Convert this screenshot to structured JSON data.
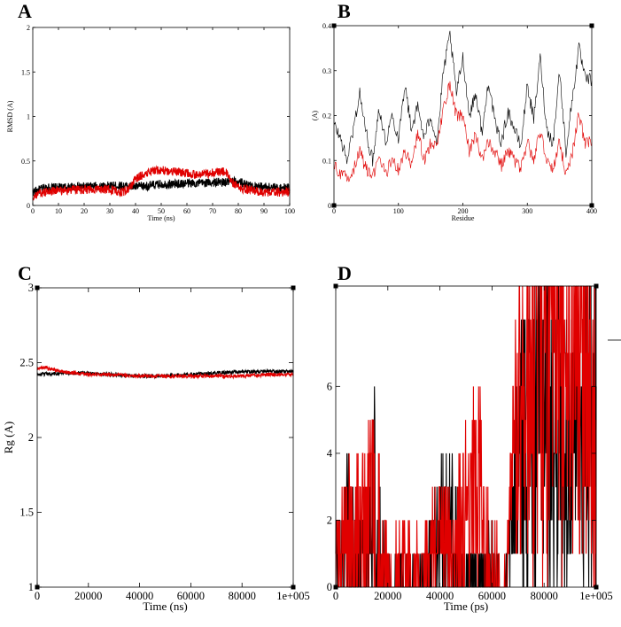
{
  "colors": {
    "series1": "#000000",
    "series2": "#e00000"
  },
  "chart_data": [
    {
      "panel": "A",
      "type": "line",
      "title": "",
      "xlabel": "Time (ns)",
      "ylabel": "RMSD (A)",
      "xlim": [
        0,
        100
      ],
      "ylim": [
        0,
        2
      ],
      "x_ticks": [
        "0",
        "10",
        "20",
        "30",
        "40",
        "50",
        "60",
        "70",
        "80",
        "90",
        "100"
      ],
      "y_ticks": [
        "0",
        "0.5",
        "1",
        "1.5",
        "2"
      ],
      "series": [
        {
          "name": "black",
          "color": "#000000",
          "x": [
            0,
            5,
            10,
            20,
            30,
            35,
            40,
            45,
            50,
            55,
            60,
            65,
            70,
            75,
            80,
            85,
            90,
            95,
            100
          ],
          "values": [
            0.15,
            0.2,
            0.2,
            0.21,
            0.22,
            0.22,
            0.21,
            0.22,
            0.24,
            0.24,
            0.25,
            0.25,
            0.26,
            0.26,
            0.27,
            0.22,
            0.21,
            0.2,
            0.2
          ]
        },
        {
          "name": "red",
          "color": "#e00000",
          "x": [
            0,
            5,
            10,
            20,
            30,
            35,
            38,
            40,
            45,
            50,
            55,
            60,
            65,
            70,
            75,
            77,
            80,
            85,
            90,
            95,
            100
          ],
          "values": [
            0.1,
            0.15,
            0.17,
            0.18,
            0.18,
            0.15,
            0.2,
            0.3,
            0.38,
            0.4,
            0.38,
            0.36,
            0.34,
            0.37,
            0.38,
            0.28,
            0.2,
            0.17,
            0.15,
            0.15,
            0.15
          ]
        }
      ]
    },
    {
      "panel": "B",
      "type": "line",
      "title": "",
      "xlabel": "Residue",
      "ylabel": "(A)",
      "xlim": [
        0,
        400
      ],
      "ylim": [
        0,
        0.4
      ],
      "x_ticks": [
        "0",
        "100",
        "200",
        "300",
        "400"
      ],
      "y_ticks": [
        "0",
        "0.1",
        "0.2",
        "0.3",
        "0.4"
      ],
      "series": [
        {
          "name": "black",
          "color": "#000000",
          "x": [
            0,
            10,
            20,
            30,
            40,
            50,
            60,
            70,
            80,
            90,
            100,
            110,
            120,
            130,
            140,
            150,
            160,
            170,
            180,
            190,
            200,
            210,
            220,
            230,
            240,
            250,
            260,
            270,
            280,
            290,
            300,
            310,
            320,
            330,
            340,
            350,
            360,
            370,
            380,
            390
          ],
          "values": [
            0.18,
            0.15,
            0.1,
            0.17,
            0.25,
            0.16,
            0.1,
            0.22,
            0.14,
            0.2,
            0.15,
            0.27,
            0.17,
            0.22,
            0.15,
            0.2,
            0.14,
            0.3,
            0.38,
            0.25,
            0.33,
            0.2,
            0.25,
            0.16,
            0.28,
            0.18,
            0.14,
            0.21,
            0.17,
            0.13,
            0.27,
            0.19,
            0.33,
            0.17,
            0.14,
            0.3,
            0.12,
            0.24,
            0.35,
            0.28
          ]
        },
        {
          "name": "red",
          "color": "#e00000",
          "x": [
            0,
            10,
            20,
            30,
            40,
            50,
            60,
            70,
            80,
            90,
            100,
            110,
            120,
            130,
            140,
            150,
            160,
            170,
            180,
            190,
            200,
            210,
            220,
            230,
            240,
            250,
            260,
            270,
            280,
            290,
            300,
            310,
            320,
            330,
            340,
            350,
            360,
            370,
            380,
            390
          ],
          "values": [
            0.09,
            0.07,
            0.06,
            0.08,
            0.12,
            0.08,
            0.06,
            0.11,
            0.07,
            0.1,
            0.08,
            0.12,
            0.09,
            0.16,
            0.1,
            0.14,
            0.13,
            0.22,
            0.27,
            0.2,
            0.2,
            0.12,
            0.16,
            0.1,
            0.14,
            0.12,
            0.09,
            0.12,
            0.1,
            0.08,
            0.14,
            0.1,
            0.17,
            0.1,
            0.08,
            0.14,
            0.07,
            0.12,
            0.2,
            0.14
          ]
        }
      ]
    },
    {
      "panel": "C",
      "type": "line",
      "title": "",
      "xlabel": "Time (ns)",
      "ylabel": "Rg (A)",
      "xlim": [
        0,
        100000
      ],
      "ylim": [
        1,
        3
      ],
      "x_ticks": [
        "0",
        "20000",
        "40000",
        "60000",
        "80000",
        "1e+005"
      ],
      "y_ticks": [
        "1",
        "1.5",
        "2",
        "2.5",
        "3"
      ],
      "series": [
        {
          "name": "black",
          "color": "#000000",
          "x": [
            0,
            10000,
            20000,
            30000,
            40000,
            50000,
            60000,
            70000,
            80000,
            90000,
            100000
          ],
          "values": [
            2.42,
            2.43,
            2.43,
            2.42,
            2.41,
            2.41,
            2.42,
            2.43,
            2.44,
            2.44,
            2.44
          ]
        },
        {
          "name": "red",
          "color": "#e00000",
          "x": [
            0,
            3000,
            10000,
            20000,
            30000,
            40000,
            50000,
            60000,
            70000,
            80000,
            90000,
            100000
          ],
          "values": [
            2.46,
            2.47,
            2.44,
            2.42,
            2.42,
            2.41,
            2.41,
            2.41,
            2.41,
            2.41,
            2.42,
            2.42
          ]
        }
      ]
    },
    {
      "panel": "D",
      "type": "line",
      "title": "",
      "xlabel": "Time (ps)",
      "ylabel": "",
      "xlim": [
        0,
        100000
      ],
      "ylim": [
        0,
        9
      ],
      "x_ticks": [
        "0",
        "20000",
        "40000",
        "60000",
        "80000",
        "1e+005"
      ],
      "y_ticks": [
        "0",
        "2",
        "4",
        "6"
      ],
      "series": [
        {
          "name": "black",
          "color": "#000000",
          "x": [
            0,
            5000,
            10000,
            15000,
            20000,
            30000,
            35000,
            40000,
            45000,
            50000,
            55000,
            60000,
            65000,
            70000,
            75000,
            80000,
            85000,
            90000,
            95000,
            100000
          ],
          "values": [
            1,
            2,
            1,
            3,
            0,
            0,
            1,
            2,
            2,
            0,
            0,
            1,
            0,
            4,
            5,
            6,
            5,
            4,
            5,
            6
          ]
        },
        {
          "name": "red",
          "color": "#e00000",
          "x": [
            0,
            5000,
            10000,
            15000,
            20000,
            30000,
            35000,
            40000,
            45000,
            50000,
            55000,
            60000,
            65000,
            70000,
            75000,
            80000,
            85000,
            90000,
            95000,
            100000
          ],
          "values": [
            1,
            2,
            2,
            3,
            1,
            1,
            1,
            2,
            1,
            3,
            3,
            1,
            1,
            5,
            6,
            8,
            7,
            6,
            7,
            6
          ]
        }
      ]
    }
  ]
}
